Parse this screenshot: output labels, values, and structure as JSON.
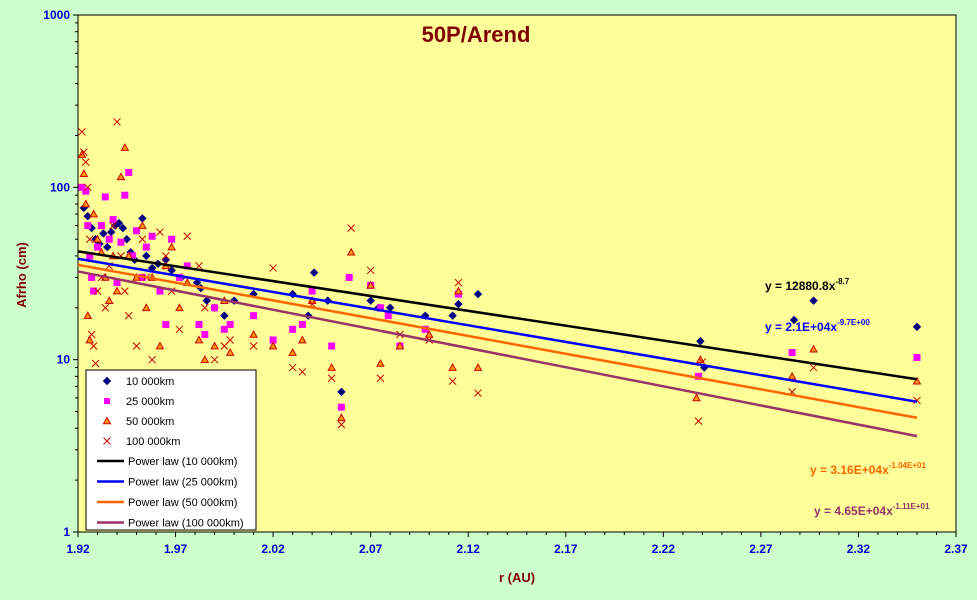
{
  "chart_data": {
    "type": "scatter",
    "title": "50P/Arend",
    "xlabel": "r (AU)",
    "ylabel": "Afrho (cm)",
    "xlim": [
      1.92,
      2.37
    ],
    "ylim": [
      1,
      1000
    ],
    "yscale": "log",
    "x_ticks": [
      "1.92",
      "1.97",
      "2.02",
      "2.07",
      "2.12",
      "2.17",
      "2.22",
      "2.27",
      "2.32",
      "2.37"
    ],
    "y_ticks": [
      "1",
      "10",
      "100",
      "1000"
    ],
    "grid": false,
    "legend_position": "bottom-left",
    "colors": {
      "plot_background": "#ffff99",
      "page_background": "#ccffcc",
      "axis": "#000000",
      "tick_labels": "#0000cc",
      "titles": "#800000"
    },
    "series": [
      {
        "name": "10 000km",
        "marker": "diamond",
        "color": "#000080",
        "points": [
          [
            1.923,
            76
          ],
          [
            1.925,
            68
          ],
          [
            1.927,
            58
          ],
          [
            1.929,
            50
          ],
          [
            1.931,
            47
          ],
          [
            1.933,
            54
          ],
          [
            1.935,
            45
          ],
          [
            1.937,
            55
          ],
          [
            1.939,
            60
          ],
          [
            1.941,
            62
          ],
          [
            1.943,
            58
          ],
          [
            1.945,
            50
          ],
          [
            1.947,
            42
          ],
          [
            1.949,
            38
          ],
          [
            1.953,
            66
          ],
          [
            1.955,
            40
          ],
          [
            1.958,
            34
          ],
          [
            1.961,
            36
          ],
          [
            1.965,
            38
          ],
          [
            1.968,
            33
          ],
          [
            1.973,
            30
          ],
          [
            1.981,
            28
          ],
          [
            1.983,
            26
          ],
          [
            1.986,
            22
          ],
          [
            1.99,
            20
          ],
          [
            1.995,
            18
          ],
          [
            2.0,
            22
          ],
          [
            2.01,
            24
          ],
          [
            2.03,
            24
          ],
          [
            2.038,
            18
          ],
          [
            2.041,
            32
          ],
          [
            2.048,
            22
          ],
          [
            2.055,
            6.5
          ],
          [
            2.07,
            22
          ],
          [
            2.074,
            20
          ],
          [
            2.08,
            20
          ],
          [
            2.098,
            18
          ],
          [
            2.112,
            18
          ],
          [
            2.115,
            21
          ],
          [
            2.125,
            24
          ],
          [
            2.239,
            12.8
          ],
          [
            2.241,
            9
          ],
          [
            2.287,
            17
          ],
          [
            2.297,
            22
          ],
          [
            2.35,
            15.5
          ]
        ]
      },
      {
        "name": "25 000km",
        "marker": "square",
        "color": "#ff00ff",
        "points": [
          [
            1.922,
            100
          ],
          [
            1.924,
            95
          ],
          [
            1.925,
            60
          ],
          [
            1.926,
            40
          ],
          [
            1.927,
            30
          ],
          [
            1.928,
            25
          ],
          [
            1.93,
            45
          ],
          [
            1.932,
            60
          ],
          [
            1.934,
            88
          ],
          [
            1.936,
            50
          ],
          [
            1.938,
            65
          ],
          [
            1.94,
            28
          ],
          [
            1.942,
            48
          ],
          [
            1.944,
            90
          ],
          [
            1.946,
            122
          ],
          [
            1.948,
            40
          ],
          [
            1.95,
            56
          ],
          [
            1.953,
            30
          ],
          [
            1.955,
            45
          ],
          [
            1.958,
            52
          ],
          [
            1.962,
            25
          ],
          [
            1.965,
            16
          ],
          [
            1.968,
            50
          ],
          [
            1.972,
            30
          ],
          [
            1.976,
            35
          ],
          [
            1.982,
            16
          ],
          [
            1.985,
            14
          ],
          [
            1.99,
            20
          ],
          [
            1.995,
            15
          ],
          [
            1.998,
            16
          ],
          [
            2.01,
            18
          ],
          [
            2.02,
            13
          ],
          [
            2.03,
            15
          ],
          [
            2.035,
            16
          ],
          [
            2.04,
            25
          ],
          [
            2.05,
            12
          ],
          [
            2.055,
            5.3
          ],
          [
            2.059,
            30
          ],
          [
            2.07,
            27
          ],
          [
            2.075,
            20
          ],
          [
            2.079,
            18
          ],
          [
            2.085,
            12
          ],
          [
            2.098,
            15
          ],
          [
            2.115,
            24
          ],
          [
            2.238,
            8
          ],
          [
            2.286,
            11
          ],
          [
            2.35,
            10.3
          ]
        ]
      },
      {
        "name": "50 000km",
        "marker": "triangle",
        "color": "#cc0000",
        "fill": "#ff9900",
        "points": [
          [
            1.922,
            155
          ],
          [
            1.923,
            120
          ],
          [
            1.924,
            80
          ],
          [
            1.925,
            18
          ],
          [
            1.926,
            13
          ],
          [
            1.928,
            70
          ],
          [
            1.93,
            50
          ],
          [
            1.932,
            42
          ],
          [
            1.934,
            30
          ],
          [
            1.936,
            22
          ],
          [
            1.938,
            40
          ],
          [
            1.94,
            25
          ],
          [
            1.942,
            115
          ],
          [
            1.944,
            170
          ],
          [
            1.946,
            40
          ],
          [
            1.95,
            30
          ],
          [
            1.953,
            60
          ],
          [
            1.955,
            20
          ],
          [
            1.958,
            30
          ],
          [
            1.962,
            12
          ],
          [
            1.965,
            35
          ],
          [
            1.968,
            45
          ],
          [
            1.972,
            20
          ],
          [
            1.976,
            28
          ],
          [
            1.982,
            13
          ],
          [
            1.985,
            10
          ],
          [
            1.99,
            12
          ],
          [
            1.995,
            22
          ],
          [
            1.998,
            11
          ],
          [
            2.01,
            14
          ],
          [
            2.02,
            12
          ],
          [
            2.03,
            11
          ],
          [
            2.035,
            13
          ],
          [
            2.04,
            22
          ],
          [
            2.05,
            9
          ],
          [
            2.055,
            4.6
          ],
          [
            2.06,
            42
          ],
          [
            2.07,
            27
          ],
          [
            2.075,
            9.5
          ],
          [
            2.085,
            12
          ],
          [
            2.1,
            14
          ],
          [
            2.112,
            9
          ],
          [
            2.115,
            25
          ],
          [
            2.125,
            9
          ],
          [
            2.237,
            6
          ],
          [
            2.239,
            10
          ],
          [
            2.286,
            8
          ],
          [
            2.297,
            11.5
          ],
          [
            2.35,
            7.5
          ]
        ]
      },
      {
        "name": "100 000km",
        "marker": "cross",
        "color": "#cc0000",
        "points": [
          [
            1.922,
            210
          ],
          [
            1.923,
            160
          ],
          [
            1.924,
            140
          ],
          [
            1.925,
            100
          ],
          [
            1.926,
            50
          ],
          [
            1.927,
            14
          ],
          [
            1.928,
            12
          ],
          [
            1.929,
            9.5
          ],
          [
            1.93,
            25
          ],
          [
            1.932,
            30
          ],
          [
            1.934,
            20
          ],
          [
            1.936,
            35
          ],
          [
            1.938,
            60
          ],
          [
            1.94,
            240
          ],
          [
            1.942,
            40
          ],
          [
            1.944,
            25
          ],
          [
            1.946,
            18
          ],
          [
            1.95,
            12
          ],
          [
            1.953,
            50
          ],
          [
            1.955,
            30
          ],
          [
            1.958,
            10
          ],
          [
            1.962,
            55
          ],
          [
            1.965,
            40
          ],
          [
            1.968,
            25
          ],
          [
            1.972,
            15
          ],
          [
            1.976,
            52
          ],
          [
            1.982,
            35
          ],
          [
            1.985,
            20
          ],
          [
            1.99,
            10
          ],
          [
            1.995,
            12
          ],
          [
            1.998,
            13
          ],
          [
            2.01,
            12
          ],
          [
            2.02,
            34
          ],
          [
            2.03,
            9
          ],
          [
            2.035,
            8.5
          ],
          [
            2.04,
            21
          ],
          [
            2.05,
            7.8
          ],
          [
            2.055,
            4.2
          ],
          [
            2.06,
            58
          ],
          [
            2.07,
            33
          ],
          [
            2.075,
            7.8
          ],
          [
            2.085,
            14
          ],
          [
            2.1,
            13
          ],
          [
            2.112,
            7.5
          ],
          [
            2.115,
            28
          ],
          [
            2.125,
            6.4
          ],
          [
            2.238,
            4.4
          ],
          [
            2.24,
            9.7
          ],
          [
            2.286,
            6.5
          ],
          [
            2.297,
            9
          ],
          [
            2.35,
            5.8
          ]
        ]
      }
    ],
    "fits": [
      {
        "name": "Power law (10 000km)",
        "color": "#000000",
        "y_start": 42.5,
        "y_end": 7.7
      },
      {
        "name": "Power law (25 000km)",
        "color": "#0000ff",
        "y_start": 38.5,
        "y_end": 5.7
      },
      {
        "name": "Power law (50 000km)",
        "color": "#ff6600",
        "y_start": 35.5,
        "y_end": 4.6
      },
      {
        "name": "Power law (100 000km)",
        "color": "#993366",
        "y_start": 32.5,
        "y_end": 3.6
      }
    ],
    "equations": [
      {
        "text": "y = 12880.8x",
        "sup": "-8.7",
        "color": "#000000"
      },
      {
        "text": "y = 2.1E+04x",
        "sup": "-9.7E+00",
        "color": "#0000ff"
      },
      {
        "text": "y = 3.16E+04x",
        "sup": "-1.04E+01",
        "color": "#ff6600"
      },
      {
        "text": "y = 4.65E+04x",
        "sup": "-1.11E+01",
        "color": "#993366"
      }
    ]
  }
}
